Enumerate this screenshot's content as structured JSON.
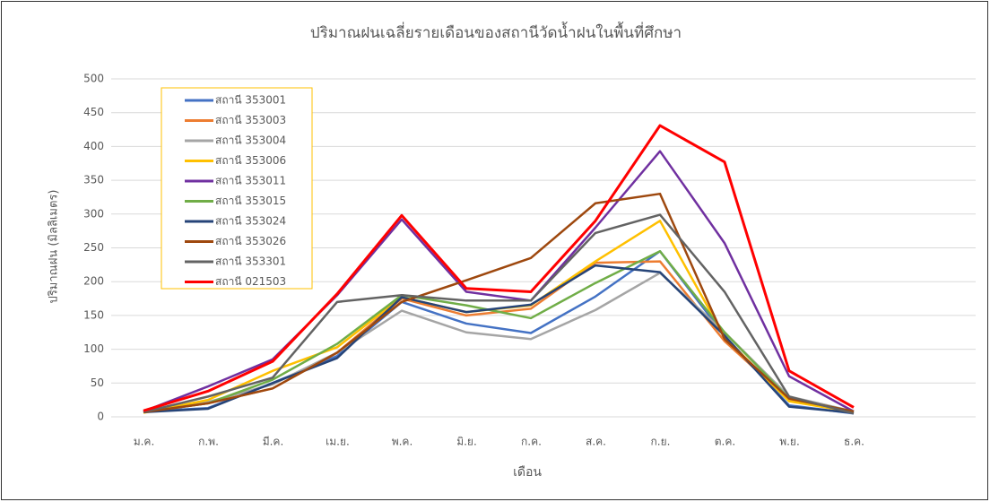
{
  "chart_data": {
    "type": "line",
    "title": "ปริมาณฝนเฉลี่ยรายเดือนของสถานีวัดน้ำฝนในพื้นที่ศึกษา",
    "xlabel": "เดือน",
    "ylabel": "ปริมาณฝน (มิลลิเมตร)",
    "categories": [
      "ม.ค.",
      "ก.พ.",
      "มี.ค.",
      "เม.ย.",
      "พ.ค.",
      "มิ.ย.",
      "ก.ค.",
      "ส.ค.",
      "ก.ย.",
      "ต.ค.",
      "พ.ย.",
      "ธ.ค."
    ],
    "ylim": [
      0,
      500
    ],
    "yticks": [
      0,
      50,
      100,
      150,
      200,
      250,
      300,
      350,
      400,
      450,
      500
    ],
    "grid": true,
    "legend": "upper left",
    "series": [
      {
        "name": "สถานี 353001",
        "color": "#4472c4",
        "values": [
          8,
          13,
          50,
          90,
          170,
          138,
          124,
          178,
          245,
          120,
          17,
          5
        ]
      },
      {
        "name": "สถานี 353003",
        "color": "#ed7d31",
        "values": [
          7,
          20,
          42,
          95,
          175,
          150,
          160,
          228,
          230,
          112,
          25,
          8
        ]
      },
      {
        "name": "สถานี 353004",
        "color": "#a5a5a5",
        "values": [
          7,
          22,
          48,
          95,
          157,
          125,
          115,
          158,
          213,
          125,
          30,
          8
        ]
      },
      {
        "name": "สถานี 353006",
        "color": "#ffc000",
        "values": [
          6,
          25,
          68,
          103,
          177,
          155,
          165,
          230,
          290,
          118,
          23,
          7
        ]
      },
      {
        "name": "สถานี 353011",
        "color": "#7030a0",
        "values": [
          8,
          45,
          85,
          180,
          292,
          185,
          172,
          280,
          393,
          257,
          60,
          8
        ]
      },
      {
        "name": "สถานี 353015",
        "color": "#70ad47",
        "values": [
          7,
          20,
          55,
          108,
          180,
          165,
          146,
          198,
          245,
          125,
          27,
          8
        ]
      },
      {
        "name": "สถานี 353024",
        "color": "#264478",
        "values": [
          7,
          12,
          50,
          87,
          177,
          155,
          166,
          224,
          214,
          120,
          15,
          6
        ]
      },
      {
        "name": "สถานี 353026",
        "color": "#9e480e",
        "values": [
          7,
          20,
          42,
          95,
          170,
          202,
          235,
          316,
          330,
          115,
          27,
          8
        ]
      },
      {
        "name": "สถานี 353301",
        "color": "#636363",
        "values": [
          7,
          30,
          58,
          170,
          180,
          172,
          172,
          272,
          299,
          185,
          30,
          5
        ]
      },
      {
        "name": "สถานี 021503",
        "color": "#ff0000",
        "values": [
          9,
          38,
          82,
          182,
          298,
          190,
          185,
          290,
          431,
          377,
          68,
          14
        ]
      }
    ]
  }
}
